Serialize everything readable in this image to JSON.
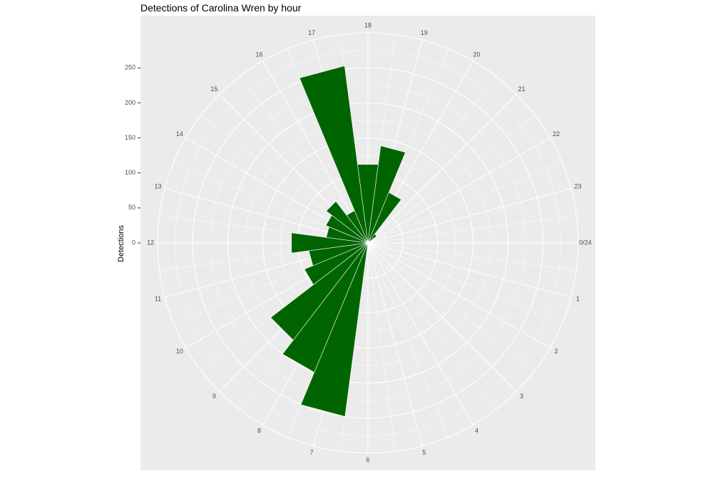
{
  "chart_data": {
    "type": "bar",
    "coordinate_system": "polar",
    "title": "Detections of Carolina Wren by hour",
    "ylabel": "Detections",
    "xlabel": "",
    "categories": [
      "0/24",
      "1",
      "2",
      "3",
      "4",
      "5",
      "6",
      "7",
      "8",
      "9",
      "10",
      "11",
      "12",
      "13",
      "14",
      "15",
      "16",
      "17",
      "18",
      "19",
      "20",
      "21",
      "22",
      "23"
    ],
    "values": [
      3,
      0,
      0,
      0,
      0,
      0,
      4,
      250,
      200,
      175,
      98,
      85,
      110,
      60,
      65,
      75,
      50,
      255,
      113,
      140,
      78,
      16,
      0,
      0
    ],
    "y_ticks": [
      "0",
      "50",
      "100",
      "150",
      "200",
      "250"
    ],
    "ylim": [
      0,
      300
    ],
    "grid": true,
    "bar_color": "#006400",
    "panel_color": "#ebebeb",
    "grid_color": "#ffffff"
  }
}
